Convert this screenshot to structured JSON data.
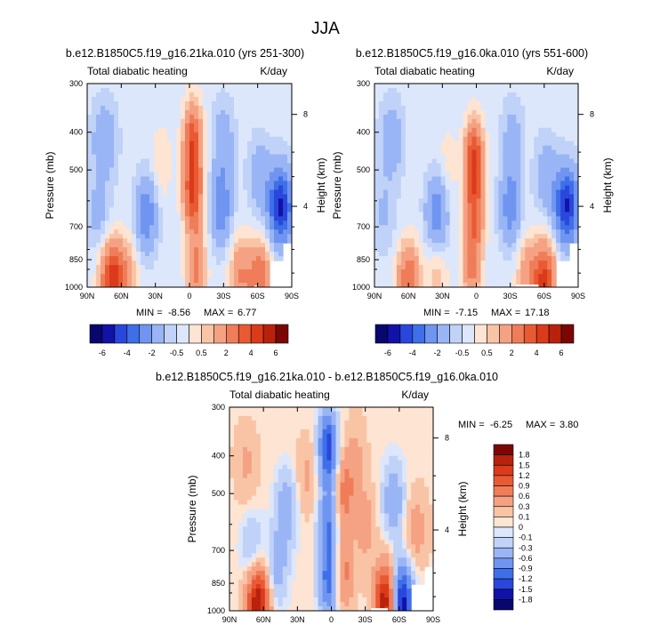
{
  "figure": {
    "title": "JJA"
  },
  "chart_data": [
    {
      "type": "heatmap",
      "title": "b.e12.B1850C5.f19_g16.21ka.010 (yrs 251-300)",
      "subtitle_left": "Total diabatic heating",
      "subtitle_right": "K/day",
      "ylabel": "Pressure (mb)",
      "y2label": "Height (km)",
      "x_ticks": [
        "90N",
        "60N",
        "30N",
        "0",
        "30S",
        "60S",
        "90S"
      ],
      "y_ticks": [
        "300",
        "400",
        "500",
        "700",
        "850",
        "1000"
      ],
      "y2_ticks": [
        "8",
        "4"
      ],
      "xlim": [
        90,
        -90
      ],
      "ylim": [
        1000,
        300
      ],
      "min_label": "MIN =",
      "min_value": "-8.56",
      "max_label": "MAX =",
      "max_value": "6.77",
      "palette": "blue_white_red",
      "features": [
        {
          "lat": -3,
          "p": 580,
          "v": 4.2
        },
        {
          "lat": -3,
          "p": 420,
          "v": 3.8
        },
        {
          "lat": -6,
          "p": 900,
          "v": 2.5
        },
        {
          "lat": 68,
          "p": 960,
          "v": 4.8
        },
        {
          "lat": 55,
          "p": 940,
          "v": 1.6
        },
        {
          "lat": -45,
          "p": 930,
          "v": 2.2
        },
        {
          "lat": -62,
          "p": 960,
          "v": 3.2
        },
        {
          "lat": 25,
          "p": 480,
          "v": 0.8
        },
        {
          "lat": 38,
          "p": 650,
          "v": -2.5
        },
        {
          "lat": -28,
          "p": 620,
          "v": -2.6
        },
        {
          "lat": -30,
          "p": 420,
          "v": -1.4
        },
        {
          "lat": 75,
          "p": 420,
          "v": -1.6
        },
        {
          "lat": 80,
          "p": 650,
          "v": -1.0
        },
        {
          "lat": -62,
          "p": 520,
          "v": -1.3
        },
        {
          "lat": -80,
          "p": 620,
          "v": -5.0
        }
      ]
    },
    {
      "type": "heatmap",
      "title": "b.e12.B1850C5.f19_g16.0ka.010 (yrs 551-600)",
      "subtitle_left": "Total diabatic heating",
      "subtitle_right": "K/day",
      "ylabel": "Pressure (mb)",
      "y2label": "Height (km)",
      "x_ticks": [
        "90N",
        "60N",
        "30N",
        "0",
        "30S",
        "60S",
        "90S"
      ],
      "y_ticks": [
        "300",
        "400",
        "500",
        "700",
        "850",
        "1000"
      ],
      "y2_ticks": [
        "8",
        "4"
      ],
      "xlim": [
        90,
        -90
      ],
      "ylim": [
        1000,
        300
      ],
      "min_label": "MIN =",
      "min_value": "-7.15",
      "max_label": "MAX =",
      "max_value": "17.18",
      "palette": "blue_white_red",
      "features": [
        {
          "lat": 2,
          "p": 470,
          "v": 4.5
        },
        {
          "lat": 2,
          "p": 650,
          "v": 3.2
        },
        {
          "lat": 4,
          "p": 900,
          "v": 2.4
        },
        {
          "lat": 60,
          "p": 960,
          "v": 3.2
        },
        {
          "lat": 35,
          "p": 930,
          "v": 1.2
        },
        {
          "lat": -45,
          "p": 930,
          "v": 1.8
        },
        {
          "lat": -60,
          "p": 960,
          "v": 4.5
        },
        {
          "lat": 25,
          "p": 480,
          "v": 0.6
        },
        {
          "lat": 35,
          "p": 650,
          "v": -2.6
        },
        {
          "lat": -30,
          "p": 620,
          "v": -2.4
        },
        {
          "lat": -32,
          "p": 420,
          "v": -1.2
        },
        {
          "lat": 75,
          "p": 420,
          "v": -1.4
        },
        {
          "lat": 82,
          "p": 650,
          "v": -0.8
        },
        {
          "lat": -62,
          "p": 520,
          "v": -1.3
        },
        {
          "lat": -80,
          "p": 620,
          "v": -4.8
        }
      ]
    },
    {
      "type": "heatmap",
      "title": "b.e12.B1850C5.f19_g16.21ka.010 - b.e12.B1850C5.f19_g16.0ka.010",
      "subtitle_left": "Total diabatic heating",
      "subtitle_right": "K/day",
      "ylabel": "Pressure (mb)",
      "y2label": "Height (km)",
      "x_ticks": [
        "90N",
        "60N",
        "30N",
        "0",
        "30S",
        "60S",
        "90S"
      ],
      "y_ticks": [
        "300",
        "400",
        "500",
        "700",
        "850",
        "1000"
      ],
      "y2_ticks": [
        "8",
        "4"
      ],
      "xlim": [
        90,
        -90
      ],
      "ylim": [
        1000,
        300
      ],
      "min_label": "MIN =",
      "min_value": "-6.25",
      "max_label": "MAX =",
      "max_value": "3.80",
      "palette": "blue_white_red",
      "features": [
        {
          "lat": 65,
          "p": 960,
          "v": 1.8
        },
        {
          "lat": -48,
          "p": 950,
          "v": 1.8
        },
        {
          "lat": -62,
          "p": 950,
          "v": -1.8
        },
        {
          "lat": 3,
          "p": 380,
          "v": -1.4
        },
        {
          "lat": 3,
          "p": 600,
          "v": -0.9
        },
        {
          "lat": 3,
          "p": 850,
          "v": -1.0
        },
        {
          "lat": -12,
          "p": 500,
          "v": 0.7
        },
        {
          "lat": -12,
          "p": 800,
          "v": 0.6
        },
        {
          "lat": -30,
          "p": 600,
          "v": 0.4
        },
        {
          "lat": -22,
          "p": 400,
          "v": 0.3
        },
        {
          "lat": 40,
          "p": 550,
          "v": -0.6
        },
        {
          "lat": 48,
          "p": 780,
          "v": -0.5
        },
        {
          "lat": 70,
          "p": 700,
          "v": -0.4
        },
        {
          "lat": 75,
          "p": 420,
          "v": 0.3
        },
        {
          "lat": 22,
          "p": 450,
          "v": 0.3
        },
        {
          "lat": -55,
          "p": 520,
          "v": -0.6
        },
        {
          "lat": -75,
          "p": 620,
          "v": 0.4
        }
      ]
    }
  ],
  "colorbar_top": {
    "labels": [
      "-6",
      "-4",
      "-2",
      "-0.5",
      "0.5",
      "2",
      "4",
      "6"
    ],
    "colors": [
      "#07076e",
      "#1212a8",
      "#2a47dc",
      "#3f6fe8",
      "#6f95f0",
      "#9ab5f5",
      "#c0d2f8",
      "#dde7fb",
      "#fde4d3",
      "#f9c4a6",
      "#f4a283",
      "#ef7d59",
      "#e95a33",
      "#db3a1b",
      "#b8220d",
      "#7c0606"
    ]
  },
  "colorbar_diff": {
    "labels": [
      "1.8",
      "1.5",
      "1.2",
      "0.9",
      "0.6",
      "0.3",
      "0.1",
      "0",
      "-0.1",
      "-0.3",
      "-0.6",
      "-0.9",
      "-1.2",
      "-1.5",
      "-1.8"
    ],
    "colors": [
      "#7c0606",
      "#b8220d",
      "#db3a1b",
      "#e95a33",
      "#ef7d59",
      "#f4a283",
      "#f9c4a6",
      "#fde4d3",
      "#dde7fb",
      "#c0d2f8",
      "#9ab5f5",
      "#6f95f0",
      "#3f6fe8",
      "#2a47dc",
      "#1212a8",
      "#07076e"
    ]
  }
}
